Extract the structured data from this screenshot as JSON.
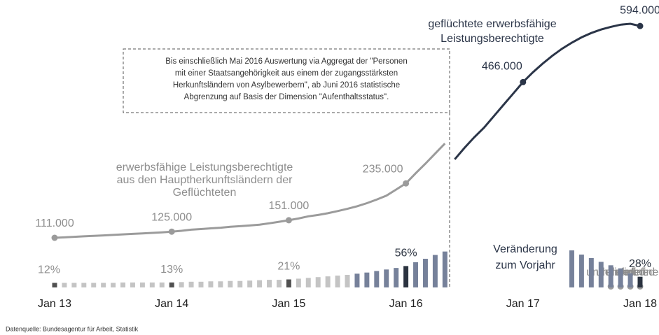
{
  "chart_data": {
    "type": "line",
    "categories": [
      "Jan 13",
      null,
      null,
      null,
      null,
      null,
      null,
      null,
      null,
      null,
      null,
      null,
      "Jan 14",
      null,
      null,
      null,
      null,
      null,
      null,
      null,
      null,
      null,
      null,
      null,
      "Jan 15",
      null,
      null,
      null,
      null,
      null,
      null,
      null,
      null,
      null,
      null,
      null,
      "Jan 16",
      null,
      null,
      null,
      null,
      null,
      null,
      null,
      null,
      null,
      null,
      null,
      "Jan 17",
      null,
      null,
      null,
      null,
      null,
      null,
      null,
      null,
      null,
      null,
      null,
      "Jan 18"
    ],
    "series": [
      {
        "name": "erwerbsfähige Leistungsberechtigte\naus den Hauptherkunftsländern der\nGeflüchteten",
        "type": "line",
        "color": "#9b9b9b",
        "values": [
          111000,
          112000,
          113200,
          114300,
          115400,
          116500,
          117600,
          118800,
          119900,
          121000,
          122200,
          123500,
          125000,
          127000,
          129500,
          131000,
          132500,
          134000,
          136000,
          137500,
          139000,
          141000,
          144000,
          147500,
          151000,
          155000,
          160000,
          163000,
          167000,
          172000,
          177000,
          183000,
          190000,
          198000,
          207000,
          221000,
          235000,
          258000,
          280000,
          303000,
          326000,
          null,
          null,
          null,
          null,
          null,
          null,
          null,
          null,
          null,
          null,
          null,
          null,
          null,
          null,
          null,
          null,
          null,
          null,
          null,
          null
        ],
        "value_labels": [
          "111.000",
          null,
          null,
          null,
          null,
          null,
          null,
          null,
          null,
          null,
          null,
          null,
          "125.000",
          null,
          null,
          null,
          null,
          null,
          null,
          null,
          null,
          null,
          null,
          null,
          "151.000",
          null,
          null,
          null,
          null,
          null,
          null,
          null,
          null,
          null,
          null,
          null,
          "235.000",
          null,
          null,
          null,
          null,
          null,
          null,
          null,
          null,
          null,
          null,
          null,
          null,
          null,
          null,
          null,
          null,
          null,
          null,
          null,
          null
        ]
      },
      {
        "name": "geflüchtete erwerbsfähige\nLeistungsberechtigte",
        "type": "line",
        "color": "#2b3548",
        "values": [
          null,
          null,
          null,
          null,
          null,
          null,
          null,
          null,
          null,
          null,
          null,
          null,
          null,
          null,
          null,
          null,
          null,
          null,
          null,
          null,
          null,
          null,
          null,
          null,
          null,
          null,
          null,
          null,
          null,
          null,
          null,
          null,
          null,
          null,
          null,
          null,
          null,
          null,
          null,
          null,
          null,
          290000,
          316000,
          340000,
          362000,
          388000,
          414000,
          440000,
          466000,
          488000,
          508000,
          526000,
          542000,
          556000,
          568000,
          578000,
          586000,
          592000,
          597000,
          599000,
          594000
        ],
        "value_labels": [
          null,
          null,
          null,
          null,
          null,
          null,
          null,
          null,
          null,
          null,
          null,
          null,
          null,
          null,
          null,
          null,
          null,
          null,
          null,
          null,
          null,
          null,
          null,
          null,
          null,
          null,
          null,
          null,
          null,
          null,
          null,
          null,
          null,
          null,
          null,
          null,
          null,
          null,
          null,
          null,
          null,
          null,
          null,
          null,
          null,
          null,
          null,
          null,
          "466.000",
          null,
          null,
          null,
          null,
          null,
          null,
          null,
          null,
          null,
          null,
          null,
          "594.000"
        ]
      },
      {
        "name": "Veränderung\nzum Vorjahr",
        "type": "bar",
        "color": "#c4c4c4",
        "highlight_color": "#505050",
        "color_2017": "#76819a",
        "highlight_color_2017": "#2b3340",
        "values": [
          12,
          12,
          12,
          12,
          12,
          12,
          12,
          13,
          13,
          13,
          13,
          13,
          13,
          14,
          15,
          15,
          16,
          16,
          17,
          17,
          18,
          19,
          20,
          20,
          21,
          23,
          25,
          27,
          29,
          31,
          33,
          36,
          39,
          43,
          47,
          51,
          56,
          66,
          75,
          85,
          94,
          null,
          null,
          null,
          null,
          null,
          null,
          null,
          null,
          null,
          null,
          null,
          null,
          97,
          86,
          77,
          67,
          58,
          50,
          37,
          28
        ],
        "value_labels": [
          "12%",
          null,
          null,
          null,
          null,
          null,
          null,
          null,
          null,
          null,
          null,
          null,
          "13%",
          null,
          null,
          null,
          null,
          null,
          null,
          null,
          null,
          null,
          null,
          null,
          "21%",
          null,
          null,
          null,
          null,
          null,
          null,
          null,
          null,
          null,
          null,
          null,
          "56%",
          null,
          null,
          null,
          null,
          null,
          null,
          null,
          null,
          null,
          null,
          null,
          null,
          null,
          null,
          null,
          null,
          null,
          null,
          null,
          null,
          null,
          null,
          null,
          "28%"
        ]
      }
    ],
    "annotation": "Bis einschließlich Mai 2016 Auswertung via Aggregat der \"Personen\nmit einer Staatsangehörigkeit aus einem der zugangsstärksten\nHerkunftsländern von Asylbewerbern\", ab Juni 2016 statistische\nAbgrenzung auf Basis der Dimension \"Aufenthaltsstatus\".",
    "source": "Datenquelle: Bundesagentur für Arbeit, Statistik"
  }
}
